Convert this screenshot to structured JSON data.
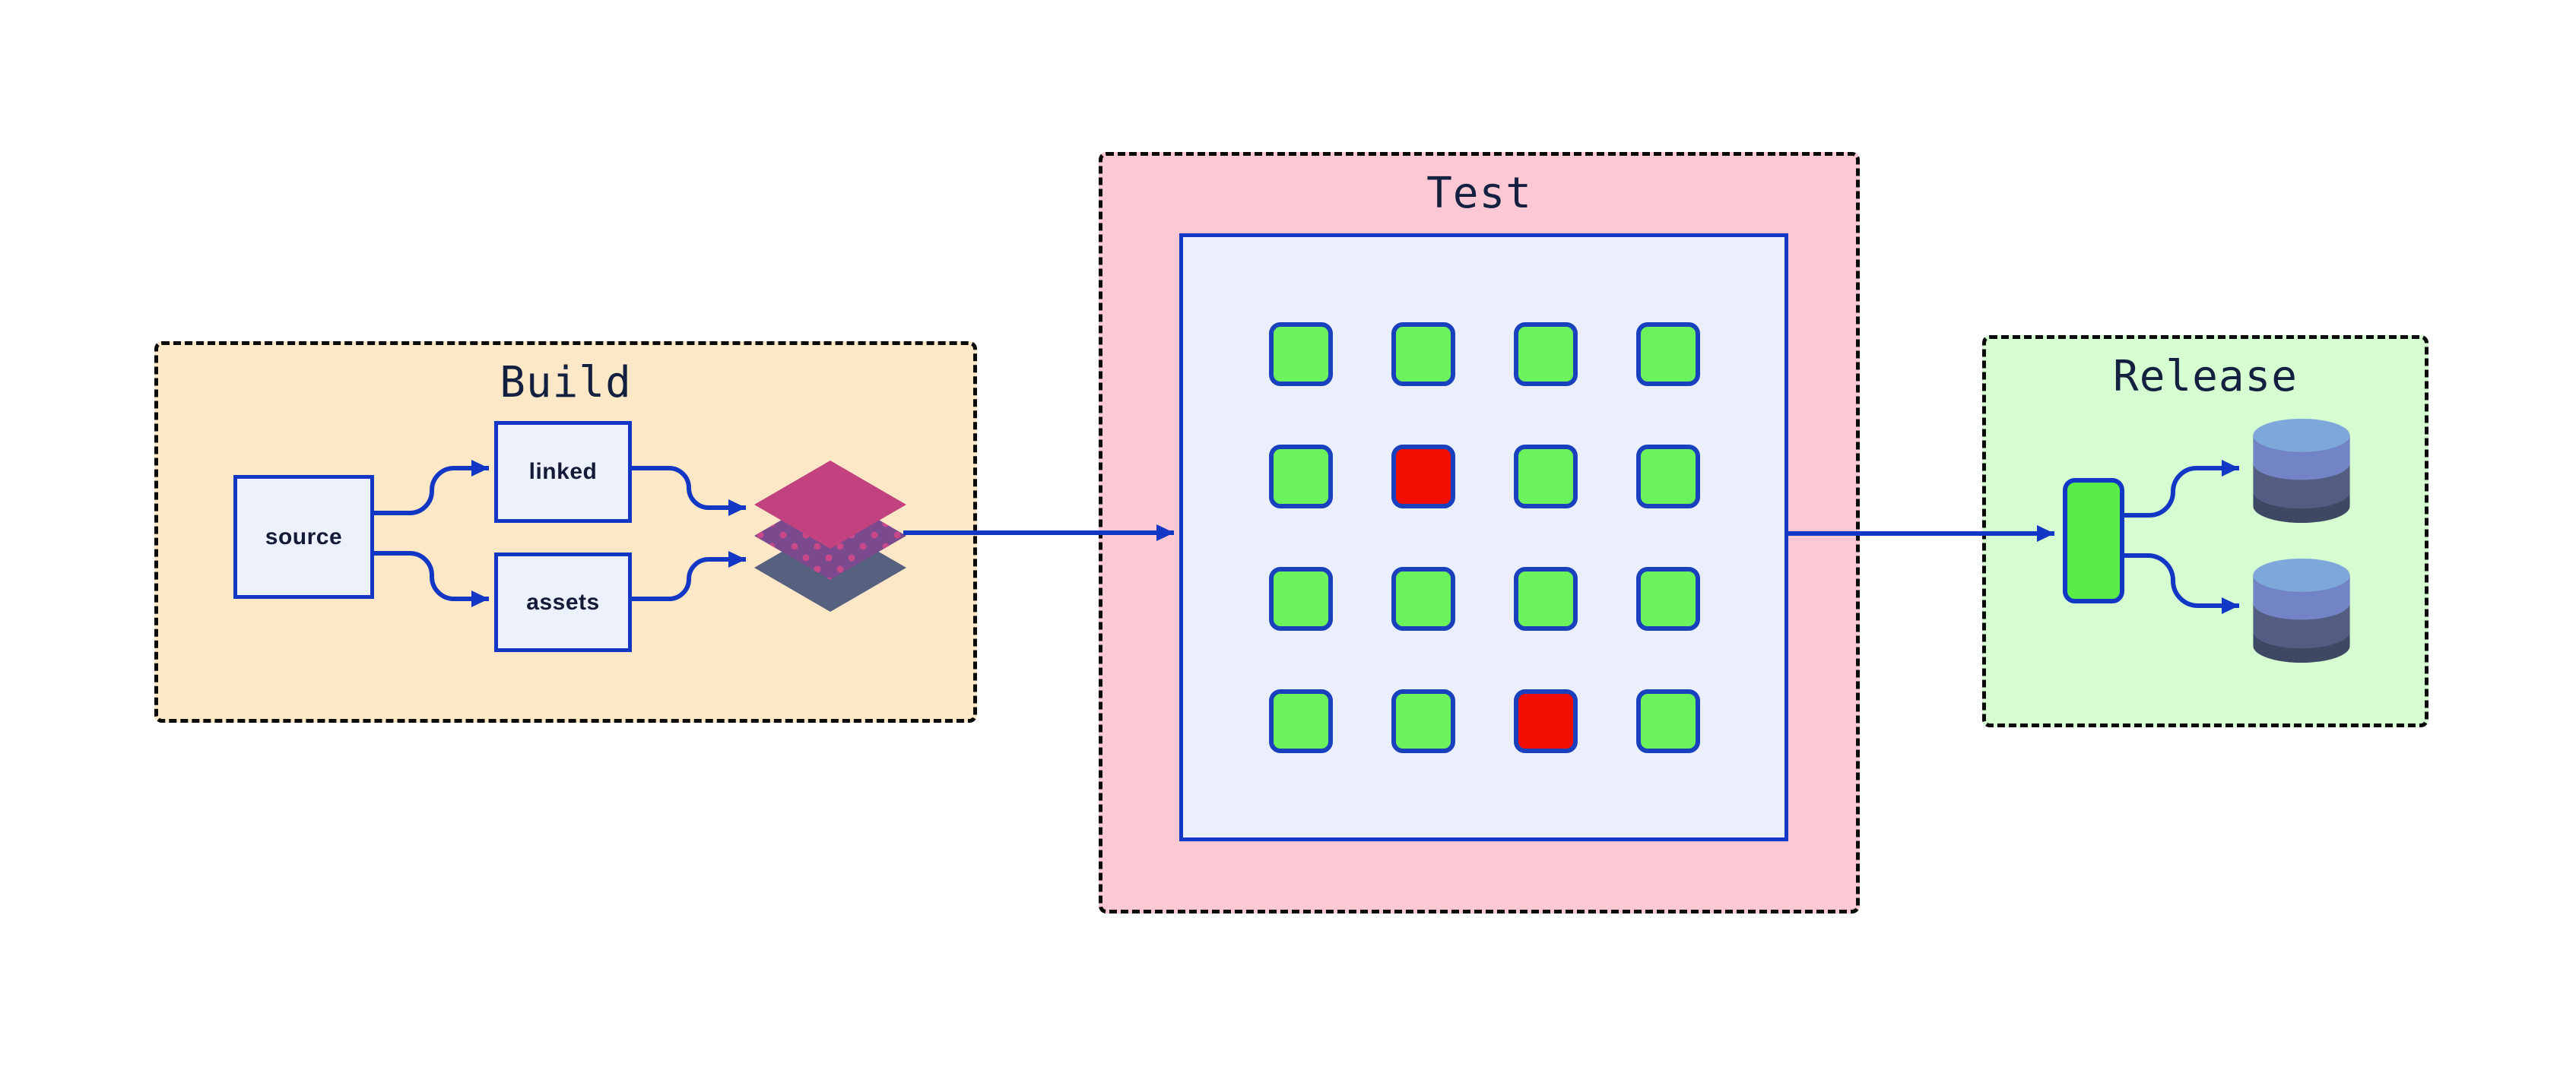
{
  "diagram": {
    "title": "build-test-release-pipeline",
    "sections": {
      "build": {
        "title": "Build",
        "bg": "#fce8c7",
        "nodes": [
          {
            "label": "source"
          },
          {
            "label": "linked"
          },
          {
            "label": "assets"
          }
        ],
        "output_icon": "layers-icon"
      },
      "test": {
        "title": "Test",
        "bg": "#fbc8d3",
        "grid": {
          "rows": 4,
          "cols": 4,
          "statuses": [
            "pass",
            "pass",
            "pass",
            "pass",
            "pass",
            "fail",
            "pass",
            "pass",
            "pass",
            "pass",
            "pass",
            "pass",
            "pass",
            "pass",
            "fail",
            "pass"
          ],
          "pass_color": "#6cf25d",
          "fail_color": "#f10d00"
        }
      },
      "release": {
        "title": "Release",
        "bg": "#d6fcd1",
        "artifact_icon": "package-icon",
        "target_icons": [
          "database-icon",
          "database-icon"
        ]
      }
    },
    "colors": {
      "arrow_blue": "#1337c5",
      "node_fill": "#edf1fc",
      "test_panel_fill": "#eaeffb",
      "cell_border": "#1940bd",
      "artifact_green": "#58ee47",
      "layer_top": "#c2417f",
      "layer_middle": "#7b4a8e",
      "layer_dots": "#c8488a",
      "layer_bottom": "#566180",
      "db_top": "#7ea7da",
      "db_band1": "#7384c6",
      "db_band2": "#535d82",
      "db_band3": "#3f4862",
      "title_color": "#13203f",
      "dashed_border": "#0b0b0b"
    }
  }
}
